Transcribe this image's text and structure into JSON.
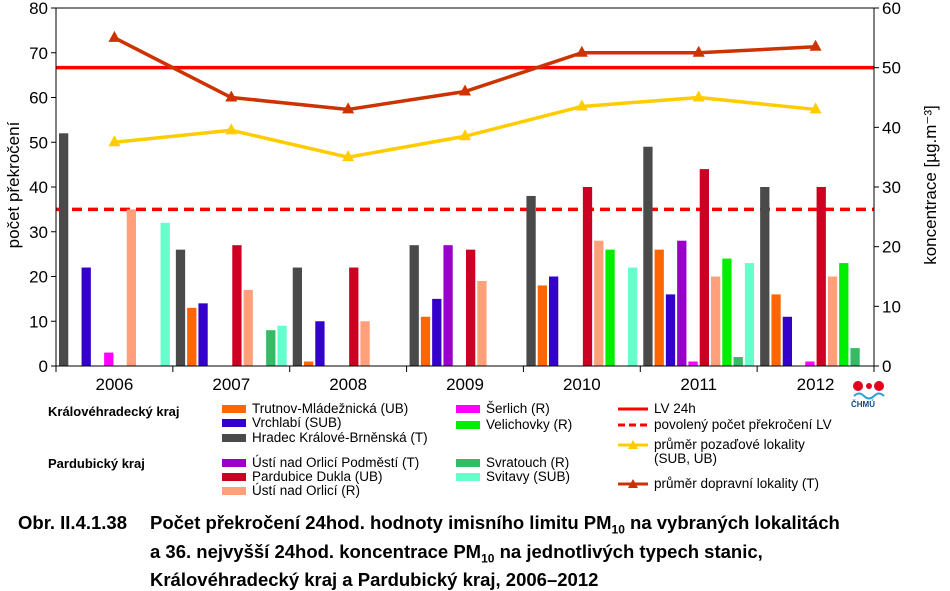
{
  "chart_data": {
    "type": "bar",
    "categories": [
      "2006",
      "2007",
      "2008",
      "2009",
      "2010",
      "2011",
      "2012"
    ],
    "ylabel": "počet překročení",
    "y2label": "koncentrace [µg.m⁻³]",
    "ylim": [
      0,
      80
    ],
    "y2lim": [
      0,
      60
    ],
    "yticks": [
      0,
      10,
      20,
      30,
      40,
      50,
      60,
      70,
      80
    ],
    "y2ticks": [
      0,
      10,
      20,
      30,
      40,
      50,
      60
    ],
    "series": [
      {
        "name": "Hradec Králové-Brněnská (T)",
        "color": "#4a4a4a",
        "values": [
          52,
          26,
          22,
          27,
          38,
          49,
          40
        ]
      },
      {
        "name": "Trutnov-Mládežnická (UB)",
        "color": "#ff6600",
        "values": [
          0,
          13,
          1,
          11,
          18,
          26,
          16
        ]
      },
      {
        "name": "Vrchlabí (SUB)",
        "color": "#3300cc",
        "values": [
          22,
          14,
          10,
          15,
          20,
          16,
          11
        ]
      },
      {
        "name": "Ústí nad Orlicí Podměstí (T)",
        "color": "#9900cc",
        "values": [
          0,
          0,
          0,
          27,
          0,
          28,
          0
        ]
      },
      {
        "name": "Šerlich (R)",
        "color": "#ff00ff",
        "values": [
          3,
          0,
          0,
          0,
          0,
          1,
          1
        ]
      },
      {
        "name": "Pardubice Dukla (UB)",
        "color": "#cc0022",
        "values": [
          0,
          27,
          22,
          26,
          40,
          44,
          40
        ]
      },
      {
        "name": "Ústí nad Orlicí (R)",
        "color": "#ffa07a",
        "values": [
          35,
          17,
          10,
          19,
          28,
          20,
          20
        ]
      },
      {
        "name": "Velichovky (R)",
        "color": "#00ee00",
        "values": [
          0,
          0,
          0,
          0,
          26,
          24,
          23
        ]
      },
      {
        "name": "Svratouch (R)",
        "color": "#33bb66",
        "values": [
          0,
          8,
          0,
          0,
          0,
          2,
          4
        ]
      },
      {
        "name": "Svitavy (SUB)",
        "color": "#66ffcc",
        "values": [
          32,
          9,
          0,
          0,
          22,
          23,
          0
        ]
      }
    ],
    "lines": [
      {
        "name": "průměr pozaďové lokality (SUB, UB)",
        "axis": "right",
        "color": "#ffcc00",
        "values": [
          37.5,
          39.5,
          35,
          38.5,
          43.5,
          45,
          43
        ]
      },
      {
        "name": "průměr dopravní lokality (T)",
        "axis": "right",
        "color": "#cc3300",
        "values": [
          55,
          45,
          43,
          46,
          52.5,
          52.5,
          53.5
        ]
      }
    ],
    "reference_lines": [
      {
        "name": "LV 24h",
        "axis": "right",
        "value": 50,
        "color": "#ff0000",
        "style": "solid"
      },
      {
        "name": "povolený počet překročení LV",
        "axis": "left",
        "value": 35,
        "color": "#ff0000",
        "style": "dashed"
      }
    ]
  },
  "legend": {
    "group_hk": "Královéhradecký kraj",
    "group_pa": "Pardubický kraj",
    "trutnov": "Trutnov-Mládežnická (UB)",
    "vrchlabi": "Vrchlabí (SUB)",
    "hk_brnenska": "Hradec Králové-Brněnská (T)",
    "serlich": "Šerlich (R)",
    "velichovky": "Velichovky (R)",
    "usti_podmesti": "Ústí nad Orlicí Podměstí (T)",
    "dukla": "Pardubice Dukla (UB)",
    "usti": "Ústí nad Orlicí (R)",
    "svratouch": "Svratouch (R)",
    "svitavy": "Svitavy (SUB)",
    "lv": "LV 24h",
    "povoleny": "povolený počet překročení LV",
    "pozadove_1": "průměr pozaďové lokality",
    "pozadove_2": "(SUB, UB)",
    "dopravni": "průměr dopravní lokality (T)"
  },
  "logo": {
    "text": "ČHMÚ"
  },
  "caption": {
    "number": "Obr. II.4.1.38",
    "line1_a": "Počet překročení 24hod. hodnoty imisního limitu PM",
    "line1_sub": "10",
    "line1_b": " na vybraných lokalitách",
    "line2_a": "a 36. nejvyšší 24hod. koncentrace PM",
    "line2_sub": "10",
    "line2_b": " na jednotlivých typech stanic,",
    "line3": "Královéhradecký kraj a Pardubický kraj, 2006–2012"
  }
}
